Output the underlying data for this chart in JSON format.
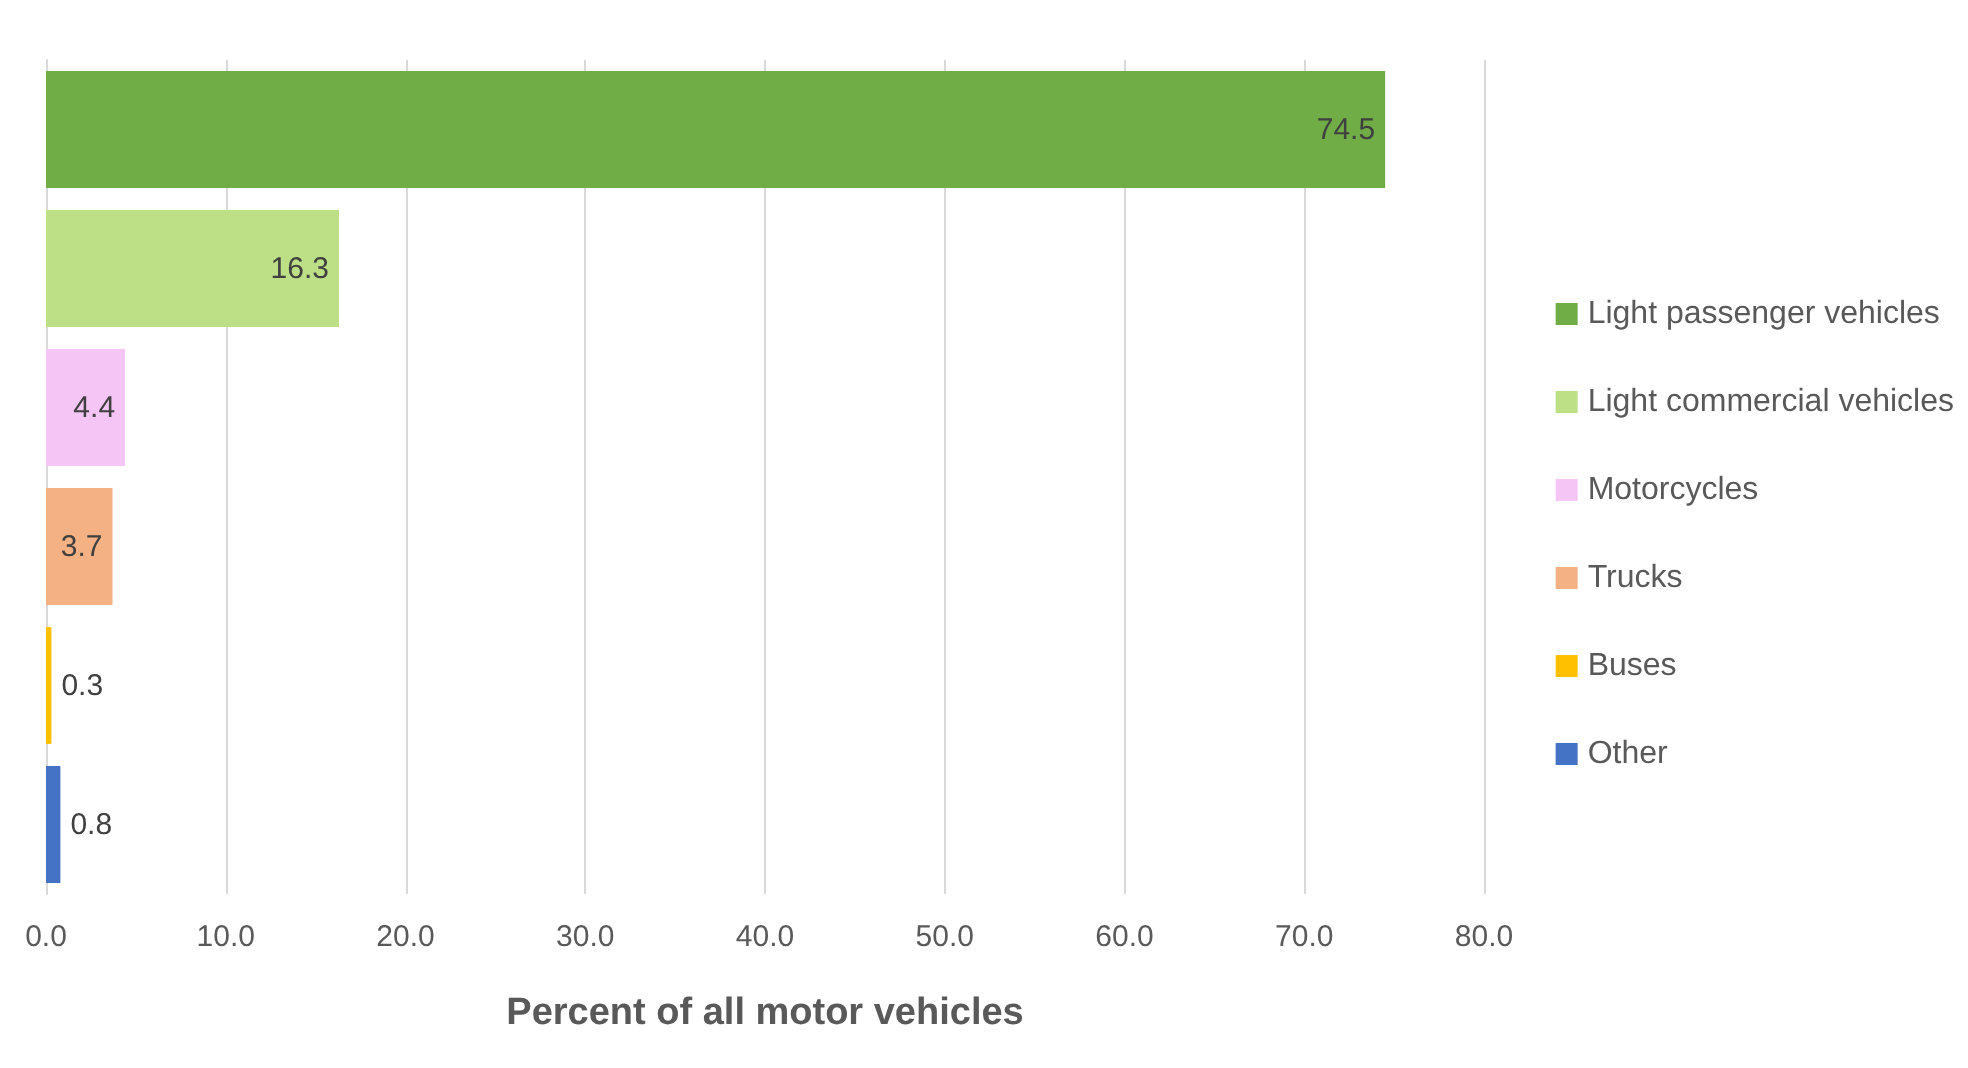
{
  "chart_data": {
    "type": "bar",
    "orientation": "horizontal",
    "xlabel": "Percent of all motor vehicles",
    "categories": [
      null,
      null,
      null,
      null,
      null,
      null
    ],
    "series": [
      {
        "name": "Light passenger vehicles",
        "color": "#70ad47",
        "values": [
          74.5,
          null,
          null,
          null,
          null,
          null
        ]
      },
      {
        "name": "Light commercial vehicles",
        "color": "#bddf86",
        "values": [
          null,
          16.3,
          null,
          null,
          null,
          null
        ]
      },
      {
        "name": "Motorcycles",
        "color": "#f5c6f5",
        "values": [
          null,
          null,
          4.4,
          null,
          null,
          null
        ]
      },
      {
        "name": "Trucks",
        "color": "#f4b183",
        "values": [
          null,
          null,
          null,
          3.7,
          null,
          null
        ]
      },
      {
        "name": "Buses",
        "color": "#ffc000",
        "values": [
          null,
          null,
          null,
          null,
          0.3,
          null
        ]
      },
      {
        "name": "Other",
        "color": "#4472c4",
        "values": [
          null,
          null,
          null,
          null,
          null,
          0.8
        ]
      }
    ],
    "xlim": [
      0,
      80
    ],
    "xticks": [
      {
        "value": 0,
        "label": "0.0"
      },
      {
        "value": 10,
        "label": "10.0"
      },
      {
        "value": 20,
        "label": "20.0"
      },
      {
        "value": 30,
        "label": "30.0"
      },
      {
        "value": 40,
        "label": "40.0"
      },
      {
        "value": 50,
        "label": "50.0"
      },
      {
        "value": 60,
        "label": "60.0"
      },
      {
        "value": 70,
        "label": "70.0"
      },
      {
        "value": 80,
        "label": "80.0"
      }
    ],
    "grid": "x",
    "legend": "right",
    "tick_labels": "x",
    "data_labels": true
  }
}
